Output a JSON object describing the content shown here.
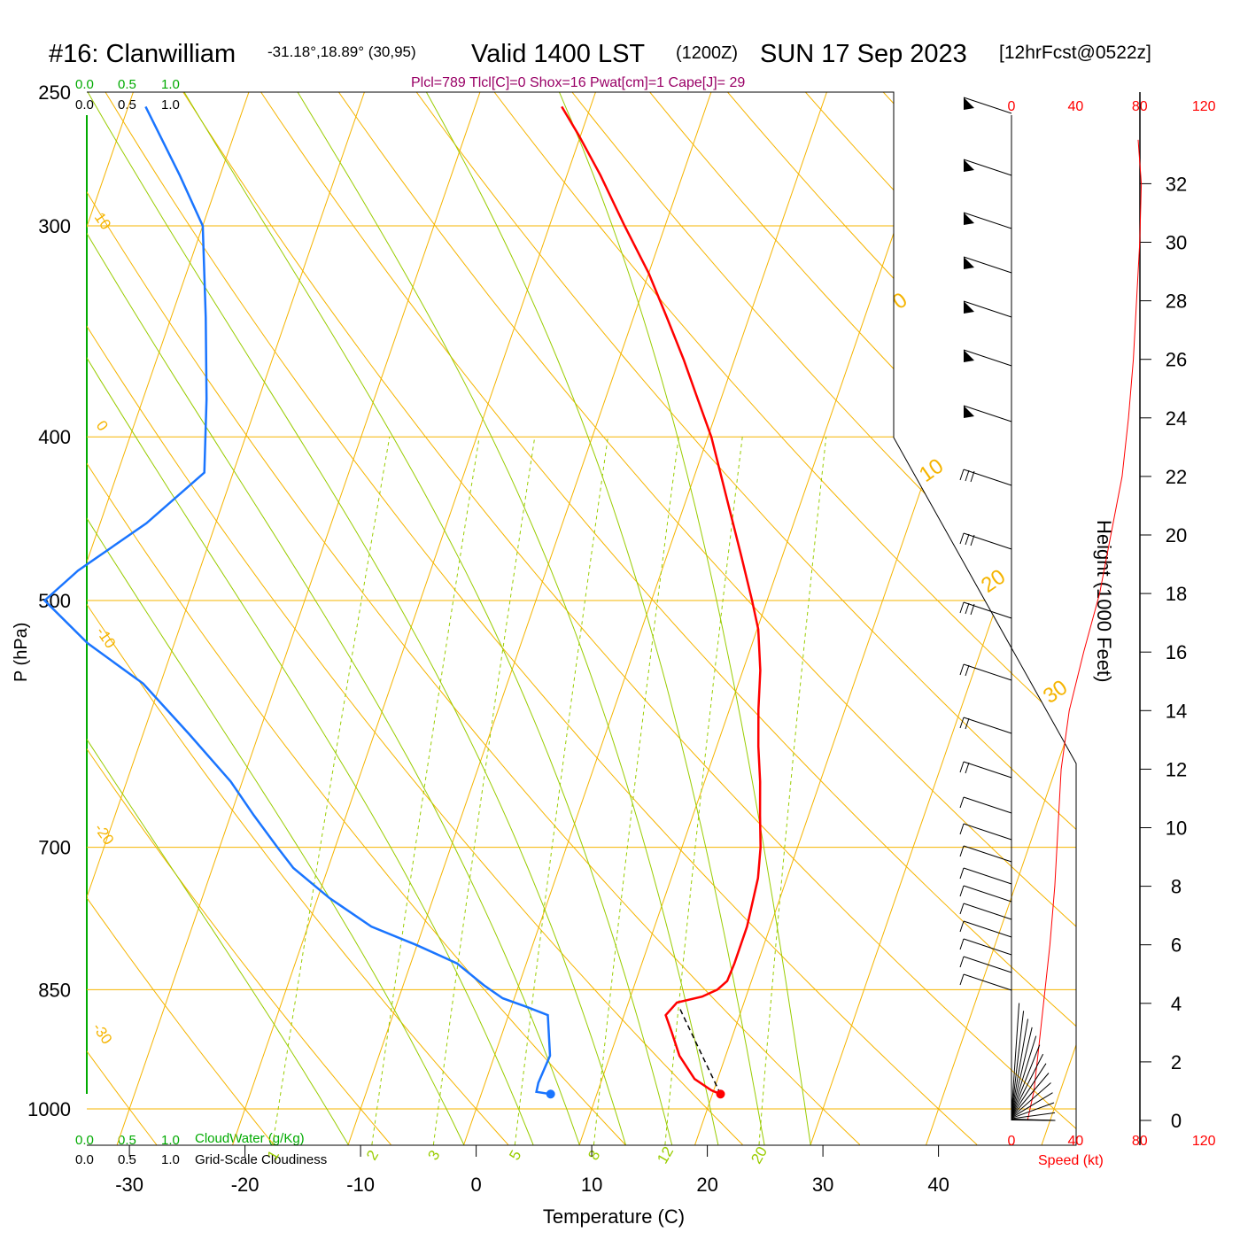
{
  "header": {
    "station": "#16: Clanwilliam",
    "coords": "-31.18°,18.89° (30,95)",
    "valid": "Valid 1400 LST",
    "zulu": "(1200Z)",
    "date": "SUN 17 Sep 2023",
    "forecast": "[12hrFcst@0522z]",
    "indices": "Plcl=789 Tlcl[C]=0 Shox=16 Pwat[cm]=1 Cape[J]= 29"
  },
  "scales": {
    "cloud_water_ticks": [
      "0.0",
      "0.5",
      "1.0"
    ],
    "cloudiness_ticks": [
      "0.0",
      "0.5",
      "1.0"
    ],
    "cloud_water_label": "CloudWater (g/Kg)",
    "cloudiness_label": "Grid-Scale Cloudiness"
  },
  "colors": {
    "isobar": "#f5b400",
    "moist_adiabat": "#99cc00",
    "mixing_ratio": "#99cc00",
    "temperature": "#ff0000",
    "dewpoint": "#1a75ff",
    "cloud_water": "#00aa00",
    "wind_speed": "#ff0000",
    "annotation_purple": "#990066"
  },
  "chart_data": {
    "type": "line",
    "title": "#16: Clanwilliam -31.18°,18.89° (30,95) Valid 1400 LST (1200Z) SUN 17 Sep 2023 [12hrFcst@0522z]",
    "xlabel": "Temperature (C)",
    "ylabel": "P (hPa)",
    "x_ticks": [
      "-30",
      "-20",
      "-10",
      "0",
      "10",
      "20",
      "30",
      "40"
    ],
    "y_ticks": [
      "250",
      "300",
      "400",
      "500",
      "700",
      "850",
      "1000"
    ],
    "y_scale": "log",
    "skew_T": true,
    "temperature_profile": [
      [
        980,
        20.7
      ],
      [
        975,
        19.8
      ],
      [
        960,
        18.0
      ],
      [
        930,
        16.0
      ],
      [
        900,
        14.6
      ],
      [
        880,
        13.6
      ],
      [
        865,
        14.2
      ],
      [
        858,
        16.2
      ],
      [
        850,
        17.3
      ],
      [
        840,
        17.9
      ],
      [
        820,
        18.0
      ],
      [
        780,
        18.0
      ],
      [
        730,
        17.5
      ],
      [
        700,
        16.8
      ],
      [
        670,
        15.8
      ],
      [
        640,
        14.8
      ],
      [
        610,
        13.6
      ],
      [
        580,
        12.5
      ],
      [
        550,
        11.5
      ],
      [
        520,
        10.1
      ],
      [
        500,
        8.7
      ],
      [
        470,
        6.4
      ],
      [
        440,
        3.9
      ],
      [
        400,
        0.3
      ],
      [
        380,
        -2.0
      ],
      [
        360,
        -4.4
      ],
      [
        340,
        -7.1
      ],
      [
        320,
        -10.0
      ],
      [
        300,
        -13.5
      ],
      [
        280,
        -17.1
      ],
      [
        265,
        -20.2
      ],
      [
        255,
        -22.5
      ]
    ],
    "dewpoint_profile": [
      [
        980,
        6.0
      ],
      [
        977,
        4.7
      ],
      [
        965,
        4.6
      ],
      [
        930,
        4.8
      ],
      [
        880,
        3.4
      ],
      [
        870,
        1.3
      ],
      [
        860,
        -1.0
      ],
      [
        845,
        -3.0
      ],
      [
        820,
        -6.0
      ],
      [
        800,
        -10.0
      ],
      [
        780,
        -14.5
      ],
      [
        750,
        -19.0
      ],
      [
        720,
        -23.0
      ],
      [
        700,
        -25.0
      ],
      [
        670,
        -28.0
      ],
      [
        640,
        -31.0
      ],
      [
        600,
        -36.0
      ],
      [
        560,
        -41.5
      ],
      [
        530,
        -47.5
      ],
      [
        500,
        -52.5
      ],
      [
        480,
        -50.5
      ],
      [
        450,
        -46.0
      ],
      [
        420,
        -42.5
      ],
      [
        380,
        -44.5
      ],
      [
        340,
        -47.0
      ],
      [
        300,
        -50.0
      ],
      [
        280,
        -53.5
      ],
      [
        255,
        -58.5
      ]
    ],
    "parcel_path": [
      [
        980,
        20.7
      ],
      [
        870,
        14.5
      ]
    ],
    "surface_temperature": 20.7,
    "surface_dewpoint": 6.0,
    "isotherm_labels": [
      "-30",
      "-20",
      "-10",
      "0",
      "10",
      "20",
      "30"
    ],
    "mixing_ratio_lines": [
      "1",
      "2",
      "3",
      "5",
      "8",
      "12",
      "20"
    ],
    "height_axis": {
      "label": "Height (1000 Feet)",
      "ticks": [
        "0",
        "2",
        "4",
        "6",
        "8",
        "10",
        "12",
        "14",
        "16",
        "18",
        "20",
        "22",
        "24",
        "26",
        "28",
        "30",
        "32"
      ]
    },
    "wind_speed_axis": {
      "label": "Speed (kt)",
      "ticks": [
        "0",
        "40",
        "80",
        "120"
      ]
    },
    "wind_speed_profile_kt": [
      [
        0,
        10
      ],
      [
        1,
        14
      ],
      [
        2,
        16
      ],
      [
        3,
        18
      ],
      [
        4,
        20
      ],
      [
        5,
        22
      ],
      [
        6,
        24
      ],
      [
        8,
        27
      ],
      [
        10,
        29
      ],
      [
        12,
        31
      ],
      [
        14,
        36
      ],
      [
        16,
        45
      ],
      [
        18,
        55
      ],
      [
        20,
        62
      ],
      [
        22,
        69
      ],
      [
        24,
        73
      ],
      [
        26,
        76
      ],
      [
        28,
        78
      ],
      [
        30,
        80
      ],
      [
        32,
        81
      ],
      [
        33.5,
        79
      ]
    ],
    "grid": true,
    "legend": "none"
  }
}
